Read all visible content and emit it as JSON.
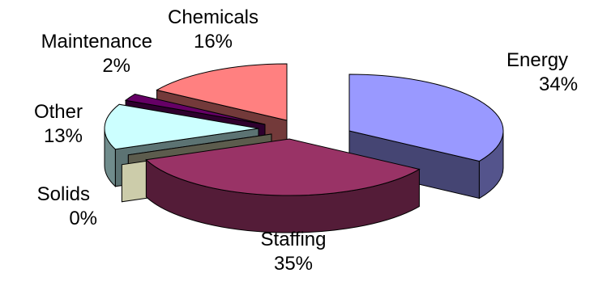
{
  "chart_data": {
    "type": "pie",
    "title": "",
    "style": "3d-exploded",
    "legend": "none",
    "slices": [
      {
        "name": "Energy",
        "value": 34,
        "label": "34%",
        "color": "#9999ff"
      },
      {
        "name": "Staffing",
        "value": 35,
        "label": "35%",
        "color": "#993366"
      },
      {
        "name": "Solids",
        "value": 0,
        "label": "0%",
        "color": "#ccccaa"
      },
      {
        "name": "Other",
        "value": 13,
        "label": "13%",
        "color": "#ccffff"
      },
      {
        "name": "Maintenance",
        "value": 2,
        "label": "2%",
        "color": "#660066"
      },
      {
        "name": "Chemicals",
        "value": 16,
        "label": "16%",
        "color": "#ff8080"
      }
    ]
  }
}
